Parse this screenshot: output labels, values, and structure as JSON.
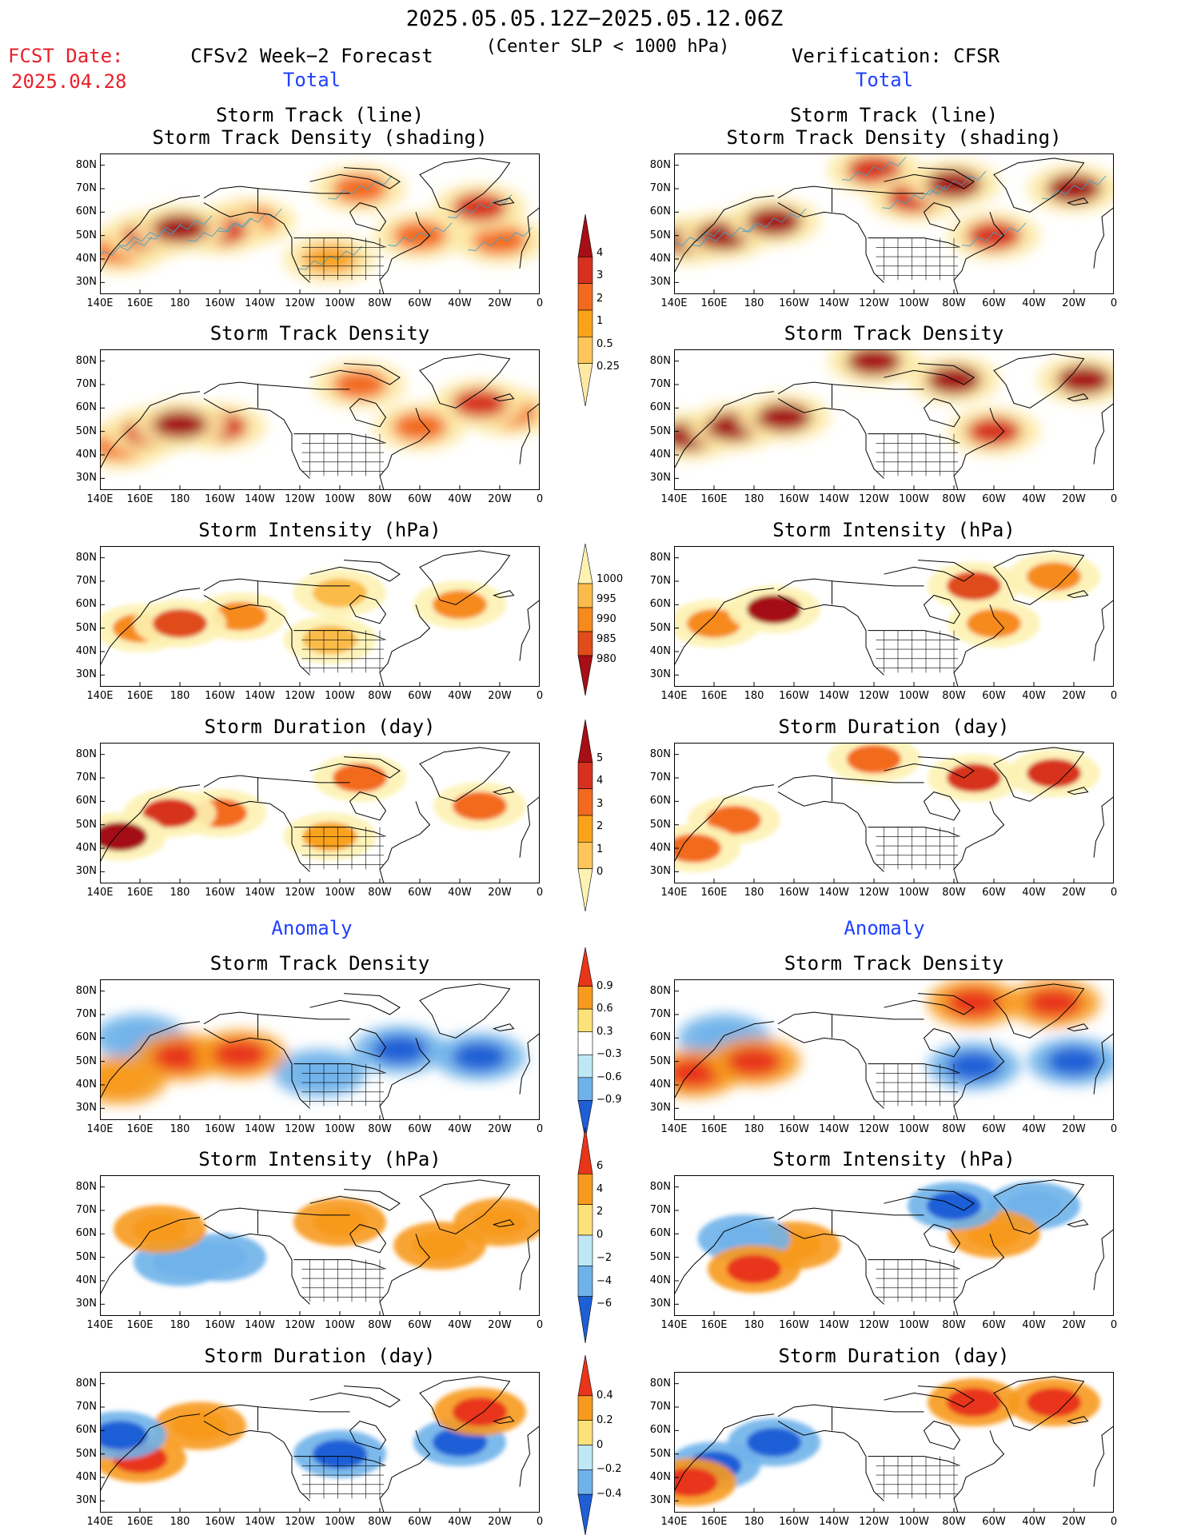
{
  "header": {
    "title": "2025.05.05.12Z−2025.05.12.06Z",
    "subtitle": "(Center SLP < 1000 hPa)",
    "fcst_label": "FCST Date:",
    "fcst_date": "2025.04.28",
    "left_label": "CFSv2 Week−2 Forecast",
    "right_label": "Verification: CFSR",
    "total_label": "Total",
    "anomaly_label": "Anomaly"
  },
  "axes": {
    "lat_labels": [
      "80N",
      "70N",
      "60N",
      "50N",
      "40N",
      "30N"
    ],
    "lon_labels": [
      "140E",
      "160E",
      "180",
      "160W",
      "140W",
      "120W",
      "100W",
      "80W",
      "60W",
      "40W",
      "20W",
      "0"
    ]
  },
  "colorbars": {
    "density": {
      "labels": [
        "4",
        "3",
        "2",
        "1",
        "0.5",
        "0.25"
      ],
      "colors": [
        "#a50f15",
        "#d7301f",
        "#f26a1f",
        "#f9a21a",
        "#fdc55a",
        "#fde9a4"
      ]
    },
    "intensity": {
      "labels": [
        "1000",
        "995",
        "990",
        "985",
        "980"
      ],
      "colors": [
        "#fdf2b2",
        "#fbbb4a",
        "#f68a1d",
        "#e04c1a",
        "#a50f15"
      ]
    },
    "duration": {
      "labels": [
        "5",
        "4",
        "3",
        "2",
        "1",
        "0"
      ],
      "colors": [
        "#a50f15",
        "#d7301f",
        "#f26a1f",
        "#f9a21a",
        "#fdc55a",
        "#fdf2b2"
      ]
    },
    "anom_density": {
      "labels": [
        "0.9",
        "0.6",
        "0.3",
        "−0.3",
        "−0.6",
        "−0.9"
      ],
      "colors": [
        "#e8361a",
        "#f79a1e",
        "#fde27a",
        "#ffffff",
        "#bfe7f5",
        "#6fb2ea",
        "#1f5fd6"
      ]
    },
    "anom_intensity": {
      "labels": [
        "6",
        "4",
        "2",
        "0",
        "−2",
        "−4",
        "−6"
      ],
      "colors": [
        "#e8361a",
        "#f79a1e",
        "#fde27a",
        "#bfe7f5",
        "#6fb2ea",
        "#1f5fd6"
      ]
    },
    "anom_duration": {
      "labels": [
        "0.4",
        "0.2",
        "0",
        "−0.2",
        "−0.4"
      ],
      "colors": [
        "#e8361a",
        "#f79a1e",
        "#fde27a",
        "#bfe7f5",
        "#6fb2ea",
        "#1f5fd6"
      ]
    }
  },
  "chart_data": [
    {
      "type": "heatmap",
      "panel": "forecast-total-track",
      "title": "Storm Track (line)",
      "title2": "Storm Track Density (shading)",
      "colorbar": "density",
      "blobs": [
        {
          "lon": 180,
          "lat": 53,
          "v": 4
        },
        {
          "lon": 165,
          "lat": 50,
          "v": 3
        },
        {
          "lon": 200,
          "lat": 52,
          "v": 3
        },
        {
          "lon": 150,
          "lat": 44,
          "v": 2
        },
        {
          "lon": 215,
          "lat": 56,
          "v": 2
        },
        {
          "lon": 270,
          "lat": 70,
          "v": 2
        },
        {
          "lon": 330,
          "lat": 62,
          "v": 3
        },
        {
          "lon": 300,
          "lat": 50,
          "v": 2
        },
        {
          "lon": 340,
          "lat": 48,
          "v": 2
        },
        {
          "lon": 255,
          "lat": 40,
          "v": 1
        }
      ]
    },
    {
      "type": "heatmap",
      "panel": "cfsr-total-track",
      "title": "Storm Track (line)",
      "title2": "Storm Track Density (shading)",
      "colorbar": "density",
      "blobs": [
        {
          "lon": 148,
          "lat": 48,
          "v": 4
        },
        {
          "lon": 165,
          "lat": 50,
          "v": 4
        },
        {
          "lon": 190,
          "lat": 56,
          "v": 4
        },
        {
          "lon": 240,
          "lat": 78,
          "v": 3
        },
        {
          "lon": 280,
          "lat": 72,
          "v": 4
        },
        {
          "lon": 340,
          "lat": 70,
          "v": 4
        },
        {
          "lon": 300,
          "lat": 50,
          "v": 3
        },
        {
          "lon": 260,
          "lat": 66,
          "v": 3
        }
      ]
    },
    {
      "type": "heatmap",
      "panel": "forecast-total-density",
      "title": "Storm Track Density",
      "colorbar": "density",
      "blobs": [
        {
          "lon": 180,
          "lat": 53,
          "v": 4
        },
        {
          "lon": 165,
          "lat": 50,
          "v": 3
        },
        {
          "lon": 200,
          "lat": 52,
          "v": 3
        },
        {
          "lon": 150,
          "lat": 44,
          "v": 2
        },
        {
          "lon": 270,
          "lat": 70,
          "v": 2
        },
        {
          "lon": 330,
          "lat": 62,
          "v": 3
        },
        {
          "lon": 300,
          "lat": 52,
          "v": 2
        },
        {
          "lon": 345,
          "lat": 58,
          "v": 2
        }
      ]
    },
    {
      "type": "heatmap",
      "panel": "cfsr-total-density",
      "title": "Storm Track Density",
      "colorbar": "density",
      "blobs": [
        {
          "lon": 148,
          "lat": 48,
          "v": 4
        },
        {
          "lon": 170,
          "lat": 52,
          "v": 4
        },
        {
          "lon": 195,
          "lat": 56,
          "v": 4
        },
        {
          "lon": 240,
          "lat": 80,
          "v": 4
        },
        {
          "lon": 280,
          "lat": 72,
          "v": 4
        },
        {
          "lon": 345,
          "lat": 72,
          "v": 4
        },
        {
          "lon": 300,
          "lat": 50,
          "v": 3
        }
      ]
    },
    {
      "type": "heatmap",
      "panel": "forecast-total-intensity",
      "title": "Storm Intensity (hPa)",
      "colorbar": "intensity",
      "blobs": [
        {
          "lon": 180,
          "lat": 52,
          "v": 3
        },
        {
          "lon": 160,
          "lat": 50,
          "v": 2
        },
        {
          "lon": 210,
          "lat": 55,
          "v": 2
        },
        {
          "lon": 320,
          "lat": 60,
          "v": 2
        },
        {
          "lon": 260,
          "lat": 65,
          "v": 1
        },
        {
          "lon": 255,
          "lat": 45,
          "v": 1
        }
      ]
    },
    {
      "type": "heatmap",
      "panel": "cfsr-total-intensity",
      "title": "Storm Intensity (hPa)",
      "colorbar": "intensity",
      "blobs": [
        {
          "lon": 190,
          "lat": 58,
          "v": 4
        },
        {
          "lon": 160,
          "lat": 52,
          "v": 2
        },
        {
          "lon": 290,
          "lat": 68,
          "v": 3
        },
        {
          "lon": 330,
          "lat": 72,
          "v": 2
        },
        {
          "lon": 300,
          "lat": 52,
          "v": 2
        }
      ]
    },
    {
      "type": "heatmap",
      "panel": "forecast-total-duration",
      "title": "Storm Duration (day)",
      "colorbar": "duration",
      "blobs": [
        {
          "lon": 150,
          "lat": 45,
          "v": 5
        },
        {
          "lon": 175,
          "lat": 55,
          "v": 4
        },
        {
          "lon": 200,
          "lat": 55,
          "v": 3
        },
        {
          "lon": 330,
          "lat": 58,
          "v": 3
        },
        {
          "lon": 270,
          "lat": 70,
          "v": 3
        },
        {
          "lon": 255,
          "lat": 45,
          "v": 2
        }
      ]
    },
    {
      "type": "heatmap",
      "panel": "cfsr-total-duration",
      "title": "Storm Duration (day)",
      "colorbar": "duration",
      "blobs": [
        {
          "lon": 170,
          "lat": 52,
          "v": 3
        },
        {
          "lon": 150,
          "lat": 40,
          "v": 3
        },
        {
          "lon": 290,
          "lat": 70,
          "v": 4
        },
        {
          "lon": 330,
          "lat": 72,
          "v": 4
        },
        {
          "lon": 240,
          "lat": 78,
          "v": 3
        }
      ]
    },
    {
      "type": "heatmap",
      "panel": "forecast-anom-density",
      "title": "Storm Track Density",
      "colorbar": "anom_density",
      "blobs": [
        {
          "lon": 180,
          "lat": 52,
          "v": 0.9
        },
        {
          "lon": 210,
          "lat": 53,
          "v": 0.9
        },
        {
          "lon": 150,
          "lat": 42,
          "v": 0.6
        },
        {
          "lon": 330,
          "lat": 52,
          "v": -0.9
        },
        {
          "lon": 290,
          "lat": 55,
          "v": -0.9
        },
        {
          "lon": 250,
          "lat": 45,
          "v": -0.3
        },
        {
          "lon": 160,
          "lat": 60,
          "v": -0.3
        }
      ]
    },
    {
      "type": "heatmap",
      "panel": "cfsr-anom-density",
      "title": "Storm Track Density",
      "colorbar": "anom_density",
      "blobs": [
        {
          "lon": 150,
          "lat": 45,
          "v": 0.9
        },
        {
          "lon": 180,
          "lat": 50,
          "v": 0.9
        },
        {
          "lon": 290,
          "lat": 75,
          "v": 0.9
        },
        {
          "lon": 330,
          "lat": 75,
          "v": 0.9
        },
        {
          "lon": 290,
          "lat": 48,
          "v": -0.9
        },
        {
          "lon": 340,
          "lat": 50,
          "v": -0.9
        },
        {
          "lon": 165,
          "lat": 60,
          "v": -0.6
        }
      ]
    },
    {
      "type": "heatmap",
      "panel": "forecast-anom-intensity",
      "title": "Storm Intensity (hPa)",
      "colorbar": "anom_intensity",
      "blobs": [
        {
          "lon": 180,
          "lat": 48,
          "v": -4
        },
        {
          "lon": 200,
          "lat": 50,
          "v": -2
        },
        {
          "lon": 310,
          "lat": 55,
          "v": 4
        },
        {
          "lon": 340,
          "lat": 65,
          "v": 2
        },
        {
          "lon": 260,
          "lat": 65,
          "v": 2
        },
        {
          "lon": 170,
          "lat": 62,
          "v": 4
        }
      ]
    },
    {
      "type": "heatmap",
      "panel": "cfsr-anom-intensity",
      "title": "Storm Intensity (hPa)",
      "colorbar": "anom_intensity",
      "blobs": [
        {
          "lon": 280,
          "lat": 72,
          "v": -6
        },
        {
          "lon": 320,
          "lat": 72,
          "v": -2
        },
        {
          "lon": 180,
          "lat": 45,
          "v": 6
        },
        {
          "lon": 200,
          "lat": 55,
          "v": 4
        },
        {
          "lon": 300,
          "lat": 60,
          "v": 4
        },
        {
          "lon": 175,
          "lat": 58,
          "v": -4
        }
      ]
    },
    {
      "type": "heatmap",
      "panel": "forecast-anom-duration",
      "title": "Storm Duration (day)",
      "colorbar": "anom_duration",
      "blobs": [
        {
          "lon": 160,
          "lat": 48,
          "v": 0.4
        },
        {
          "lon": 190,
          "lat": 62,
          "v": 0.2
        },
        {
          "lon": 150,
          "lat": 58,
          "v": -0.4
        },
        {
          "lon": 320,
          "lat": 55,
          "v": -0.4
        },
        {
          "lon": 260,
          "lat": 50,
          "v": -0.4
        },
        {
          "lon": 330,
          "lat": 68,
          "v": 0.4
        }
      ]
    },
    {
      "type": "heatmap",
      "panel": "cfsr-anom-duration",
      "title": "Storm Duration (day)",
      "colorbar": "anom_duration",
      "blobs": [
        {
          "lon": 290,
          "lat": 72,
          "v": 0.4
        },
        {
          "lon": 330,
          "lat": 72,
          "v": 0.4
        },
        {
          "lon": 160,
          "lat": 45,
          "v": -0.4
        },
        {
          "lon": 190,
          "lat": 55,
          "v": -0.4
        },
        {
          "lon": 148,
          "lat": 38,
          "v": 0.4
        }
      ]
    }
  ]
}
